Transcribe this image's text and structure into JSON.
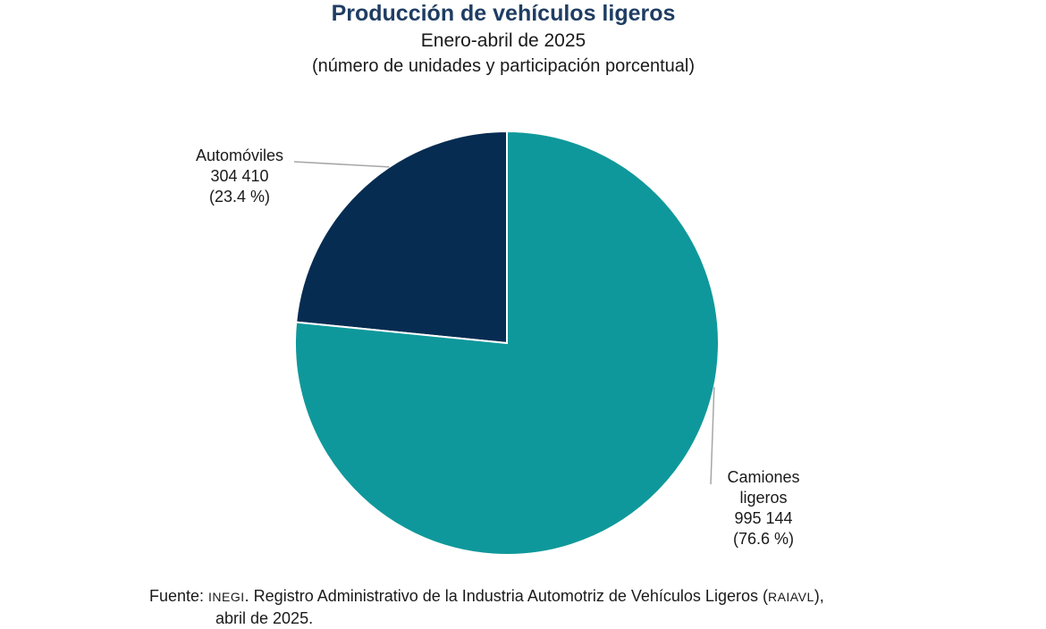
{
  "title": "Producción de vehículos ligeros",
  "subtitle": "Enero-abril de 2025",
  "subtitle2": "(número de unidades y participación porcentual)",
  "colors": {
    "automoviles": "#062c52",
    "camiones": "#0f989b",
    "title": "#1f3d63"
  },
  "chart_data": {
    "type": "pie",
    "title": "Producción de vehículos ligeros",
    "subtitle": "Enero-abril de 2025 (número de unidades y participación porcentual)",
    "slices": [
      {
        "label_lines": [
          "Automóviles"
        ],
        "value": 304410,
        "value_label": "304 410",
        "percent": 23.4,
        "percent_label": "(23.4 %)",
        "color": "#062c52"
      },
      {
        "label_lines": [
          "Camiones",
          "ligeros"
        ],
        "value": 995144,
        "value_label": "995 144",
        "percent": 76.6,
        "percent_label": "(76.6 %)",
        "color": "#0f989b"
      }
    ]
  },
  "source": {
    "prefix": "Fuente: ",
    "org": "INEGI",
    "text": ". Registro Administrativo de la Industria Automotriz de Vehículos Ligeros (",
    "acronym": "RAIAVL",
    "suffix": "),",
    "line2": "abril de 2025."
  }
}
